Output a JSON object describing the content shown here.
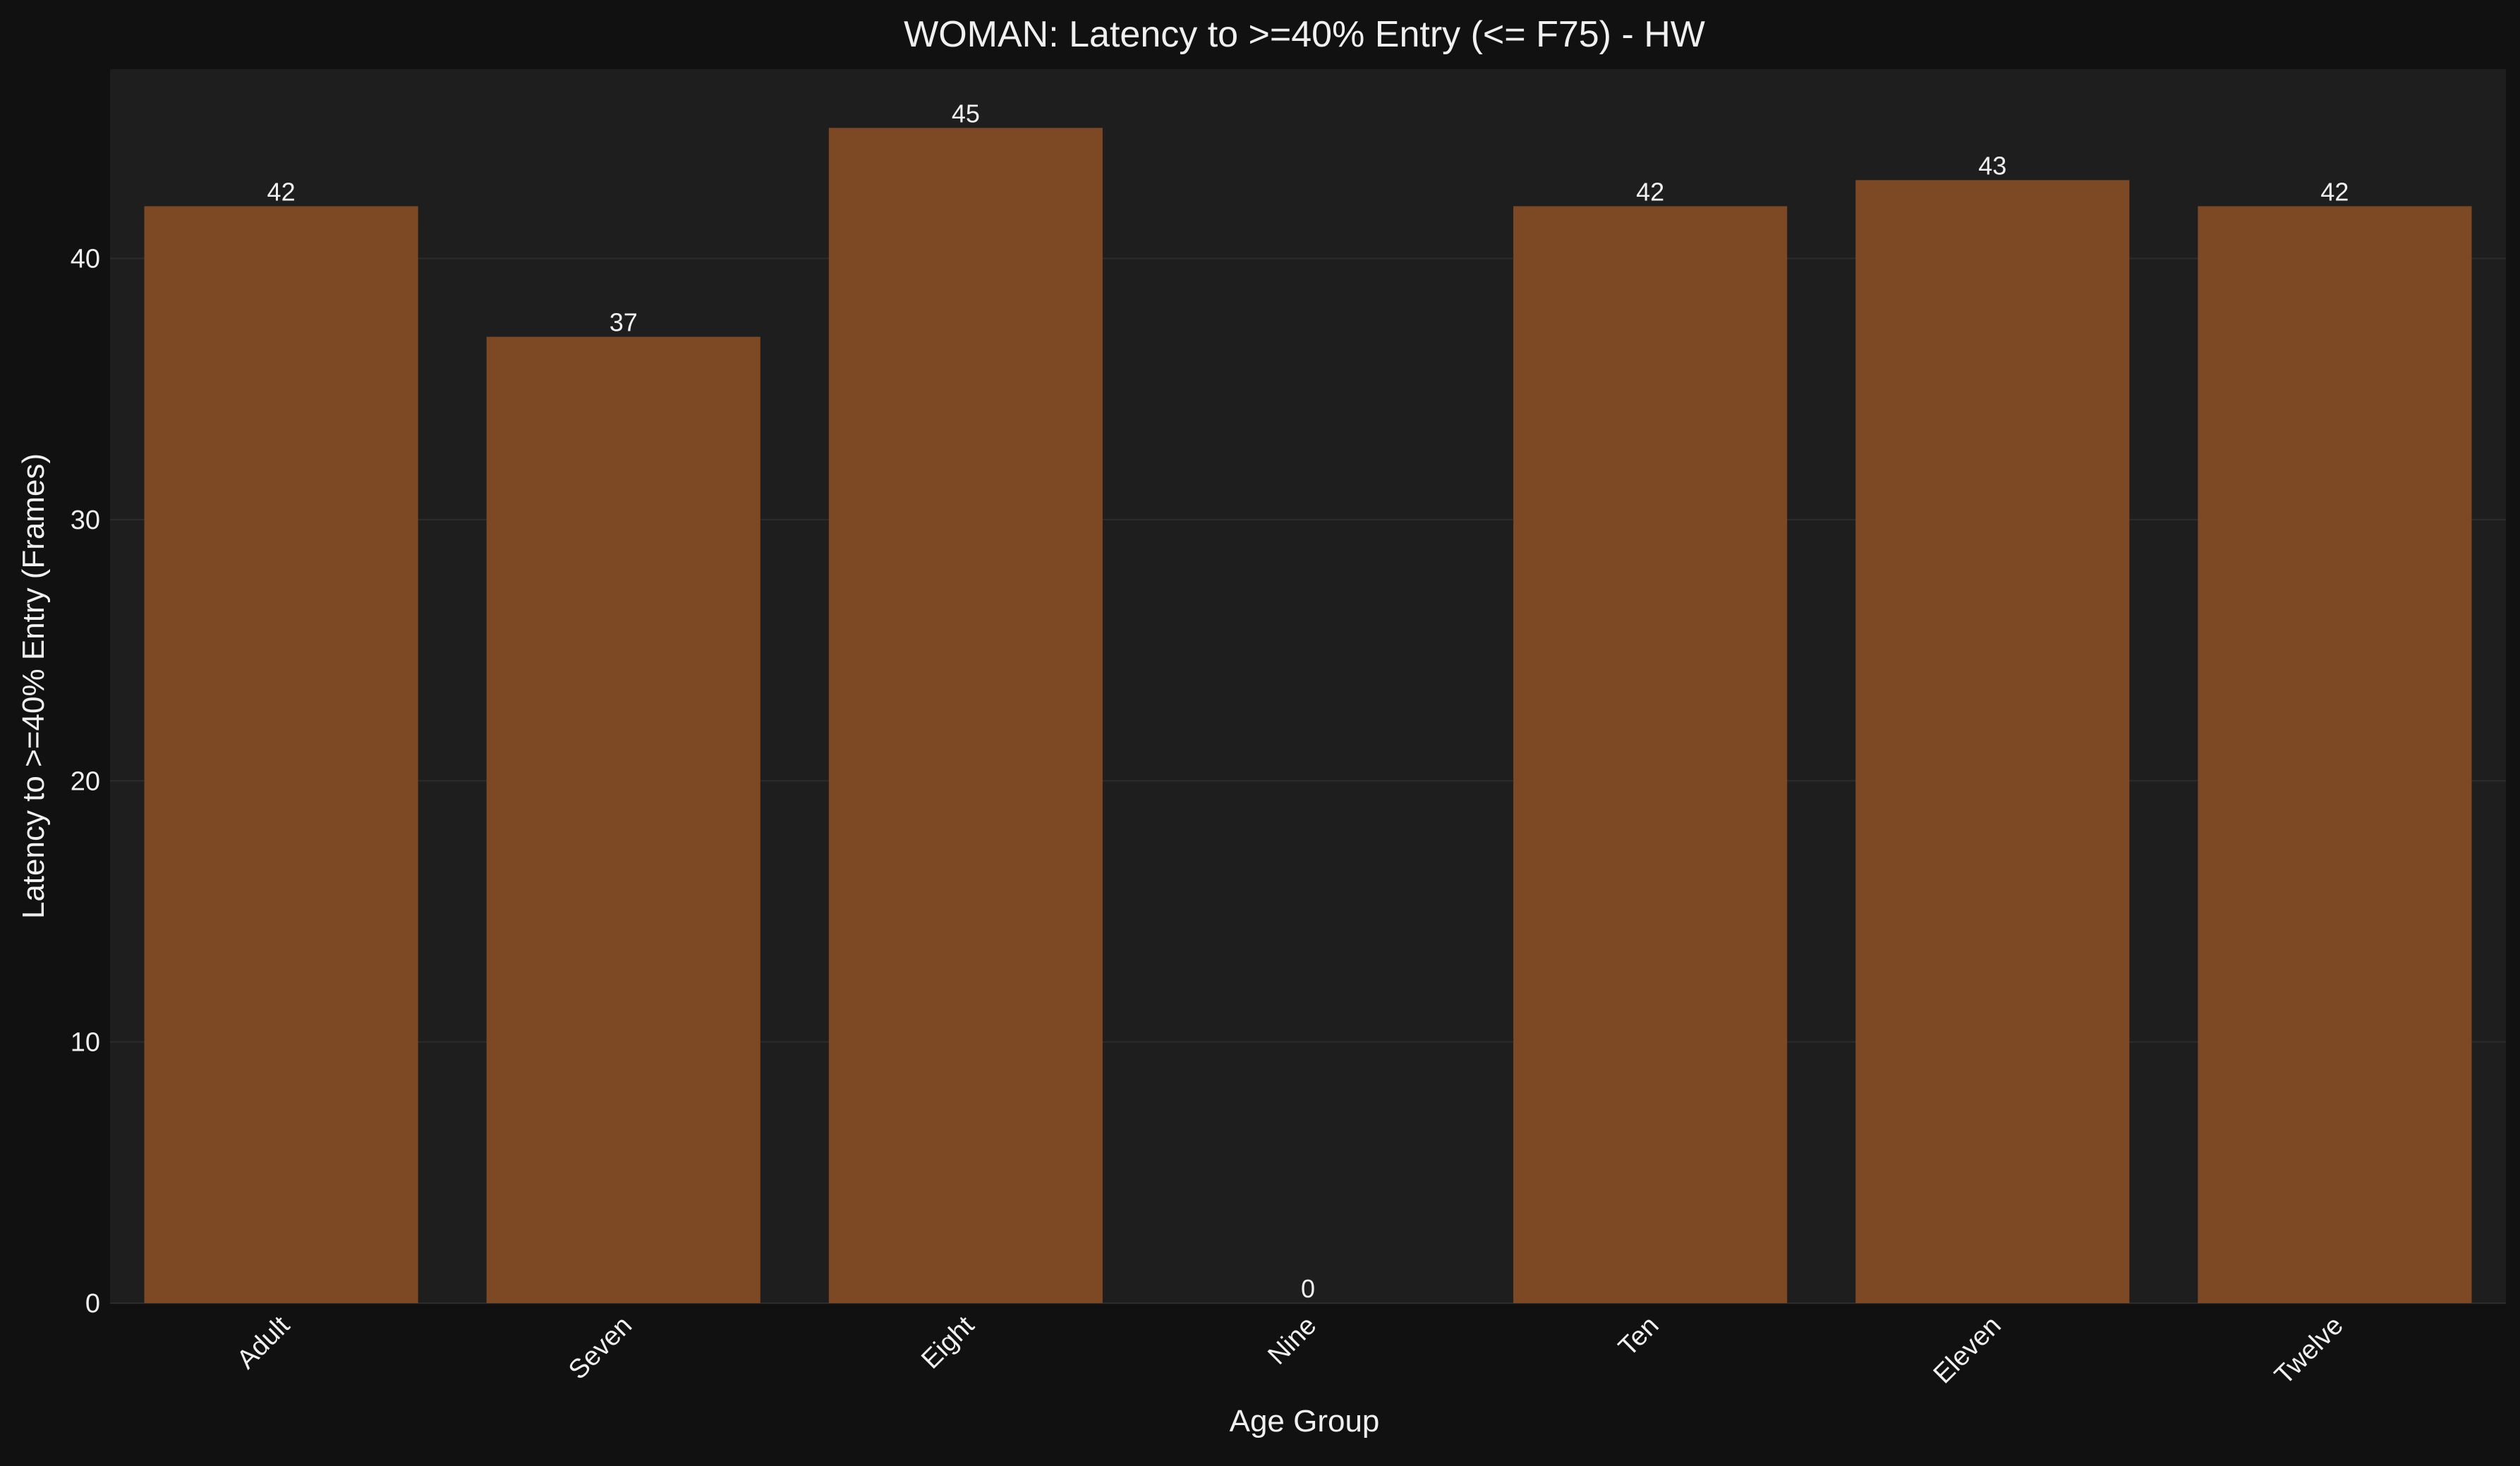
{
  "chart_data": {
    "type": "bar",
    "title": "WOMAN: Latency to >=40% Entry (<= F75) - HW",
    "xlabel": "Age Group",
    "ylabel": "Latency to >=40% Entry (Frames)",
    "categories": [
      "Adult",
      "Seven",
      "Eight",
      "Nine",
      "Ten",
      "Eleven",
      "Twelve"
    ],
    "values": [
      42,
      37,
      45,
      0,
      42,
      43,
      42
    ],
    "data_labels": [
      "42",
      "37",
      "45",
      "0",
      "42",
      "43",
      "42"
    ],
    "ylim": [
      0,
      47.25
    ],
    "yticks": [
      0,
      10,
      20,
      30,
      40
    ],
    "ytick_labels": [
      "0",
      "10",
      "20",
      "30",
      "40"
    ],
    "grid": true,
    "colors": {
      "bar": "#7d4925",
      "figure_bg": "#111111",
      "axes_bg": "#1e1e1e",
      "grid": "#2c2c2c",
      "text": "#f0f0f0"
    }
  }
}
